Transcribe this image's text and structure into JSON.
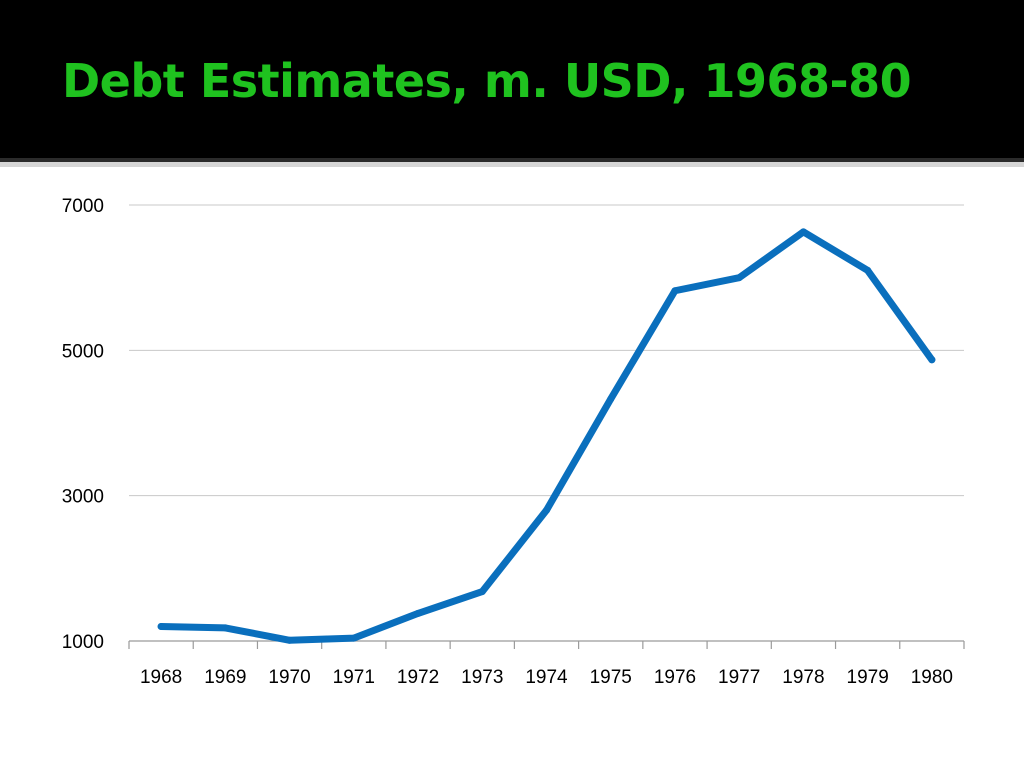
{
  "slide": {
    "title": "Debt Estimates, m. USD, 1968-80"
  },
  "colors": {
    "title_bar": "#000000",
    "title_text": "#1fc21f",
    "series_line": "#0a6fbd",
    "gridline": "#c8c8c8",
    "axis": "#9a9a9a"
  },
  "chart_data": {
    "type": "line",
    "categories": [
      "1968",
      "1969",
      "1970",
      "1971",
      "1972",
      "1973",
      "1974",
      "1975",
      "1976",
      "1977",
      "1978",
      "1979",
      "1980"
    ],
    "series": [
      {
        "values": [
          1200,
          1180,
          1010,
          1040,
          1380,
          1680,
          2800,
          4330,
          5820,
          6000,
          6630,
          6100,
          4870
        ]
      }
    ],
    "y_ticks": [
      "1000",
      "3000",
      "5000",
      "7000"
    ],
    "ylim": [
      1000,
      7000
    ],
    "grid": true,
    "legend": "none"
  }
}
